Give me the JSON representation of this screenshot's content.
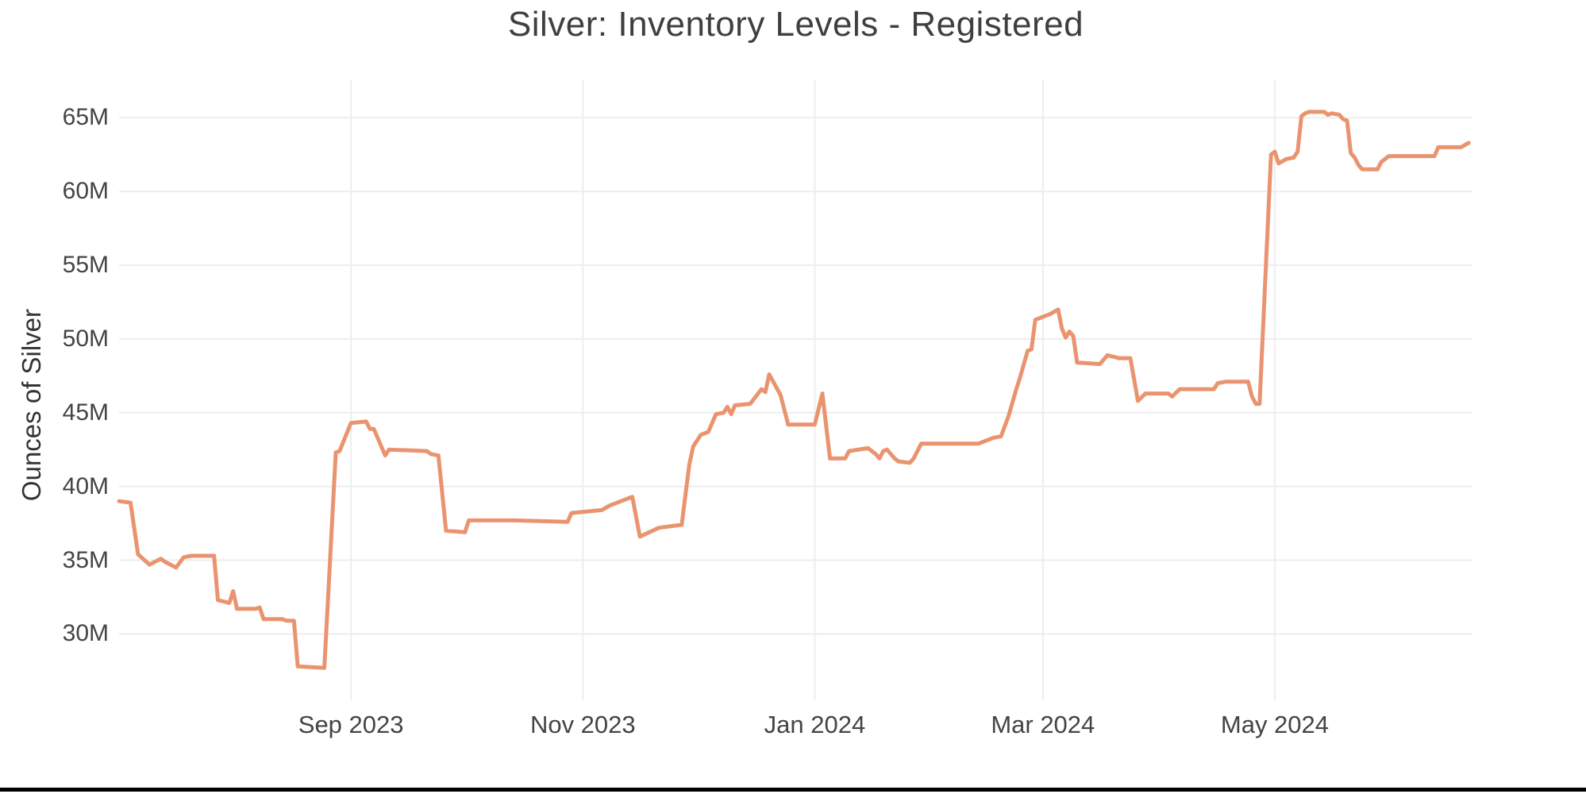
{
  "page": {
    "background": "#ffffff",
    "bottom_bar_color": "#000000"
  },
  "chart_data": {
    "type": "line",
    "title": "Silver: Inventory Levels - Registered",
    "ylabel": "Ounces of Silver",
    "xlabel": "",
    "grid": true,
    "legend_position": "none",
    "grid_color": "#ededed",
    "tick_color": "#444444",
    "xlim": [
      "2023-07-02",
      "2024-06-22"
    ],
    "ylim": [
      25.5,
      67.6
    ],
    "x_ticks": [
      {
        "label": "Sep 2023",
        "date": "2023-09-01"
      },
      {
        "label": "Nov 2023",
        "date": "2023-11-01"
      },
      {
        "label": "Jan 2024",
        "date": "2024-01-01"
      },
      {
        "label": "Mar 2024",
        "date": "2024-03-01"
      },
      {
        "label": "May 2024",
        "date": "2024-05-01"
      }
    ],
    "y_ticks": [
      {
        "label": "30M",
        "value": 30
      },
      {
        "label": "35M",
        "value": 35
      },
      {
        "label": "40M",
        "value": 40
      },
      {
        "label": "45M",
        "value": 45
      },
      {
        "label": "50M",
        "value": 50
      },
      {
        "label": "55M",
        "value": 55
      },
      {
        "label": "60M",
        "value": 60
      },
      {
        "label": "65M",
        "value": 65
      }
    ],
    "unit": "millions of ounces",
    "series": [
      {
        "name": "Registered",
        "color": "#e9946f",
        "line_width": 5,
        "points": [
          [
            "2023-07-02",
            39.0
          ],
          [
            "2023-07-05",
            38.9
          ],
          [
            "2023-07-07",
            35.4
          ],
          [
            "2023-07-10",
            34.7
          ],
          [
            "2023-07-13",
            35.1
          ],
          [
            "2023-07-14",
            34.9
          ],
          [
            "2023-07-17",
            34.5
          ],
          [
            "2023-07-19",
            35.2
          ],
          [
            "2023-07-21",
            35.3
          ],
          [
            "2023-07-27",
            35.3
          ],
          [
            "2023-07-28",
            32.3
          ],
          [
            "2023-07-31",
            32.1
          ],
          [
            "2023-08-01",
            32.9
          ],
          [
            "2023-08-02",
            31.7
          ],
          [
            "2023-08-07",
            31.7
          ],
          [
            "2023-08-08",
            31.8
          ],
          [
            "2023-08-09",
            31.0
          ],
          [
            "2023-08-14",
            31.0
          ],
          [
            "2023-08-15",
            30.9
          ],
          [
            "2023-08-17",
            30.9
          ],
          [
            "2023-08-18",
            27.8
          ],
          [
            "2023-08-25",
            27.7
          ],
          [
            "2023-08-28",
            42.3
          ],
          [
            "2023-08-29",
            42.4
          ],
          [
            "2023-09-01",
            44.3
          ],
          [
            "2023-09-05",
            44.4
          ],
          [
            "2023-09-06",
            43.9
          ],
          [
            "2023-09-07",
            43.9
          ],
          [
            "2023-09-10",
            42.1
          ],
          [
            "2023-09-11",
            42.5
          ],
          [
            "2023-09-21",
            42.4
          ],
          [
            "2023-09-22",
            42.2
          ],
          [
            "2023-09-24",
            42.1
          ],
          [
            "2023-09-26",
            37.0
          ],
          [
            "2023-10-01",
            36.9
          ],
          [
            "2023-10-02",
            37.7
          ],
          [
            "2023-10-14",
            37.7
          ],
          [
            "2023-10-28",
            37.6
          ],
          [
            "2023-10-29",
            38.2
          ],
          [
            "2023-11-06",
            38.4
          ],
          [
            "2023-11-08",
            38.7
          ],
          [
            "2023-11-13",
            39.2
          ],
          [
            "2023-11-14",
            39.3
          ],
          [
            "2023-11-16",
            36.6
          ],
          [
            "2023-11-21",
            37.2
          ],
          [
            "2023-11-27",
            37.4
          ],
          [
            "2023-11-29",
            41.5
          ],
          [
            "2023-11-30",
            42.7
          ],
          [
            "2023-12-02",
            43.5
          ],
          [
            "2023-12-04",
            43.7
          ],
          [
            "2023-12-06",
            44.9
          ],
          [
            "2023-12-08",
            45.0
          ],
          [
            "2023-12-09",
            45.4
          ],
          [
            "2023-12-10",
            44.9
          ],
          [
            "2023-12-11",
            45.5
          ],
          [
            "2023-12-15",
            45.6
          ],
          [
            "2023-12-18",
            46.6
          ],
          [
            "2023-12-19",
            46.4
          ],
          [
            "2023-12-20",
            47.6
          ],
          [
            "2023-12-23",
            46.2
          ],
          [
            "2023-12-25",
            44.2
          ],
          [
            "2024-01-01",
            44.2
          ],
          [
            "2024-01-03",
            46.3
          ],
          [
            "2024-01-05",
            41.9
          ],
          [
            "2024-01-09",
            41.9
          ],
          [
            "2024-01-10",
            42.4
          ],
          [
            "2024-01-15",
            42.6
          ],
          [
            "2024-01-17",
            42.2
          ],
          [
            "2024-01-18",
            41.9
          ],
          [
            "2024-01-19",
            42.4
          ],
          [
            "2024-01-20",
            42.5
          ],
          [
            "2024-01-22",
            41.9
          ],
          [
            "2024-01-23",
            41.7
          ],
          [
            "2024-01-26",
            41.6
          ],
          [
            "2024-01-27",
            41.9
          ],
          [
            "2024-01-29",
            42.9
          ],
          [
            "2024-02-13",
            42.9
          ],
          [
            "2024-02-15",
            43.1
          ],
          [
            "2024-02-17",
            43.3
          ],
          [
            "2024-02-19",
            43.4
          ],
          [
            "2024-02-21",
            44.8
          ],
          [
            "2024-02-22",
            45.7
          ],
          [
            "2024-02-23",
            46.6
          ],
          [
            "2024-02-24",
            47.4
          ],
          [
            "2024-02-26",
            49.2
          ],
          [
            "2024-02-27",
            49.3
          ],
          [
            "2024-02-28",
            51.3
          ],
          [
            "2024-03-01",
            51.5
          ],
          [
            "2024-03-03",
            51.7
          ],
          [
            "2024-03-05",
            52.0
          ],
          [
            "2024-03-06",
            50.7
          ],
          [
            "2024-03-07",
            50.1
          ],
          [
            "2024-03-08",
            50.5
          ],
          [
            "2024-03-09",
            50.2
          ],
          [
            "2024-03-10",
            48.4
          ],
          [
            "2024-03-16",
            48.3
          ],
          [
            "2024-03-18",
            48.9
          ],
          [
            "2024-03-21",
            48.7
          ],
          [
            "2024-03-24",
            48.7
          ],
          [
            "2024-03-26",
            45.8
          ],
          [
            "2024-03-28",
            46.3
          ],
          [
            "2024-04-03",
            46.3
          ],
          [
            "2024-04-04",
            46.1
          ],
          [
            "2024-04-06",
            46.6
          ],
          [
            "2024-04-15",
            46.6
          ],
          [
            "2024-04-16",
            47.0
          ],
          [
            "2024-04-18",
            47.1
          ],
          [
            "2024-04-24",
            47.1
          ],
          [
            "2024-04-25",
            46.1
          ],
          [
            "2024-04-26",
            45.6
          ],
          [
            "2024-04-27",
            45.6
          ],
          [
            "2024-04-30",
            62.5
          ],
          [
            "2024-05-01",
            62.7
          ],
          [
            "2024-05-02",
            61.9
          ],
          [
            "2024-05-04",
            62.2
          ],
          [
            "2024-05-06",
            62.3
          ],
          [
            "2024-05-07",
            62.7
          ],
          [
            "2024-05-08",
            65.1
          ],
          [
            "2024-05-09",
            65.3
          ],
          [
            "2024-05-10",
            65.4
          ],
          [
            "2024-05-14",
            65.4
          ],
          [
            "2024-05-15",
            65.2
          ],
          [
            "2024-05-16",
            65.3
          ],
          [
            "2024-05-18",
            65.2
          ],
          [
            "2024-05-19",
            64.9
          ],
          [
            "2024-05-20",
            64.8
          ],
          [
            "2024-05-21",
            62.6
          ],
          [
            "2024-05-22",
            62.3
          ],
          [
            "2024-05-23",
            61.8
          ],
          [
            "2024-05-24",
            61.5
          ],
          [
            "2024-05-28",
            61.5
          ],
          [
            "2024-05-29",
            62.0
          ],
          [
            "2024-05-31",
            62.4
          ],
          [
            "2024-06-12",
            62.4
          ],
          [
            "2024-06-13",
            63.0
          ],
          [
            "2024-06-19",
            63.0
          ],
          [
            "2024-06-21",
            63.3
          ]
        ]
      }
    ]
  }
}
